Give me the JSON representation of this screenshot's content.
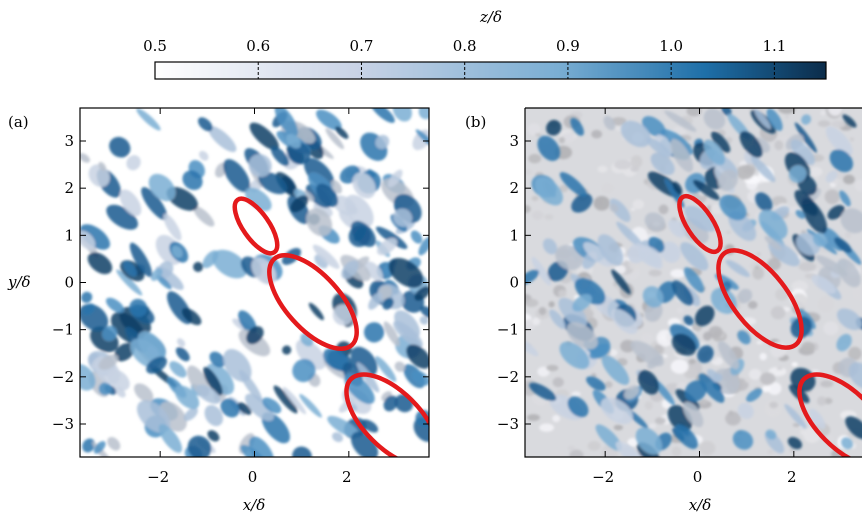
{
  "figure": {
    "colorbar": {
      "label": "z/δ",
      "ticks": [
        "0.5",
        "0.6",
        "0.7",
        "0.8",
        "0.9",
        "1.0",
        "1.1"
      ],
      "range": [
        0.5,
        1.15
      ],
      "colors": [
        "#ffffff",
        "#c9d3e6",
        "#7aaed3",
        "#1e6fa8",
        "#0b2c4a"
      ]
    },
    "panels": [
      {
        "label": "(a)",
        "xlabel": "x/δ",
        "ylabel": "y/δ",
        "xticks": [
          "−2",
          "0",
          "2"
        ],
        "yticks": [
          "3",
          "2",
          "1",
          "0",
          "−1",
          "−2",
          "−3"
        ],
        "highlight_color": "#e41a1c"
      },
      {
        "label": "(b)",
        "xlabel": "x/δ",
        "ylabel": "",
        "xticks": [
          "−2",
          "0",
          "2"
        ],
        "yticks": [
          "3",
          "2",
          "1",
          "0",
          "−1",
          "−2",
          "−3"
        ],
        "highlight_color": "#e41a1c"
      }
    ]
  }
}
